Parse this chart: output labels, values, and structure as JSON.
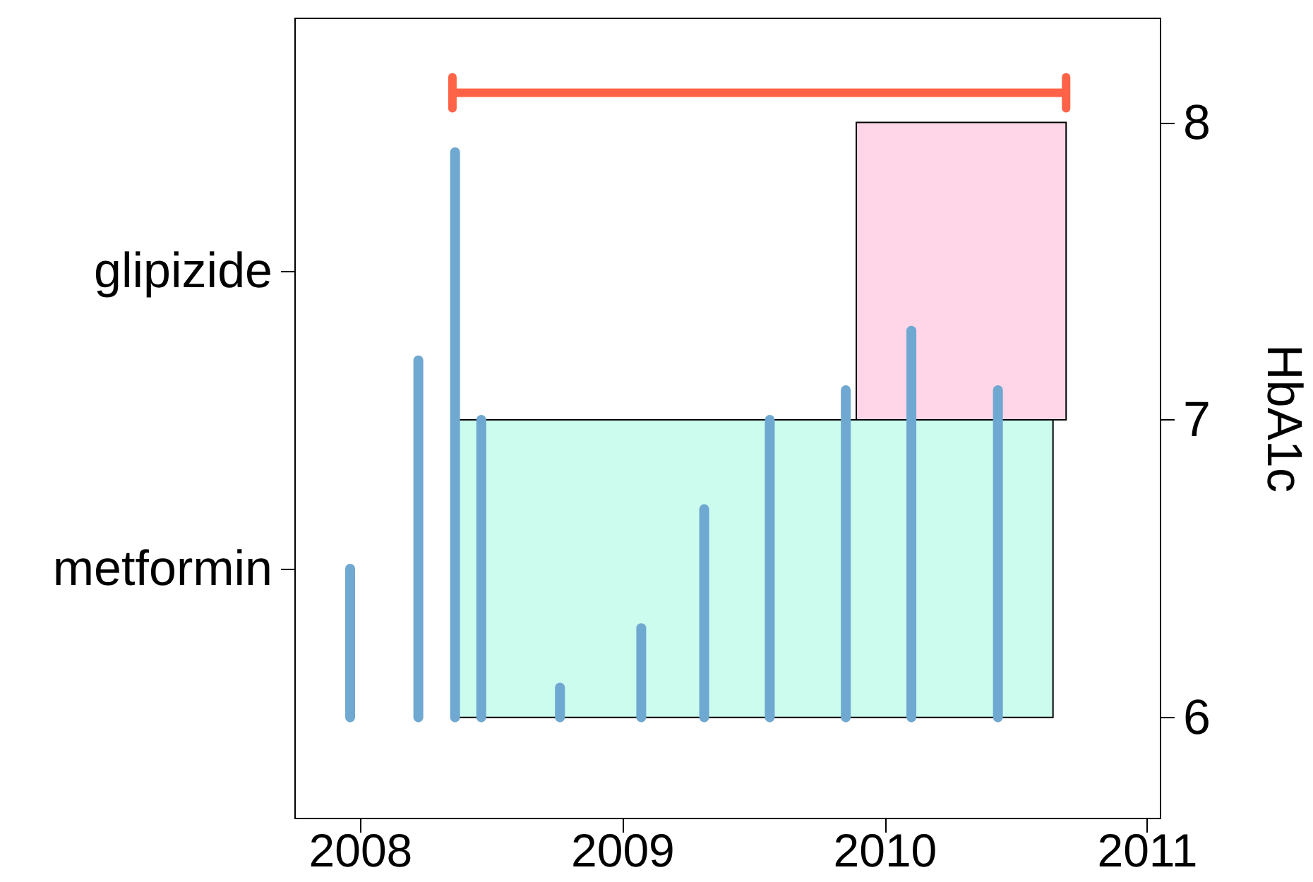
{
  "chart_data": [
    {
      "type": "bar",
      "orientation": "horizontal",
      "categories": [
        "glipizide",
        "metformin"
      ],
      "values": [
        0.8,
        2.27
      ],
      "base": [
        2009.89,
        2008.37
      ],
      "colors": [
        "#ffd6e8",
        "#ccfcee"
      ],
      "xlim": [
        2007.75,
        2011.05
      ],
      "xticks": [
        2008,
        2009,
        2010,
        2011
      ],
      "grid": false
    },
    {
      "type": "bar",
      "y2label": "HbA1c",
      "grid": false,
      "tick_labels": "y",
      "xlim": [
        2007.75,
        2011.05
      ],
      "xticks": [
        2008,
        2009,
        2010,
        2011
      ],
      "y2lim": [
        5.66,
        8.35
      ],
      "y2ticks": [
        6,
        7,
        8
      ],
      "series": [
        {
          "type": "bar",
          "axis": "y2",
          "color": "#6fa8d0",
          "x": [
            2007.96,
            2008.22,
            2008.36,
            2008.46,
            2008.76,
            2009.07,
            2009.31,
            2009.56,
            2009.85,
            2010.1,
            2010.43
          ],
          "base": [
            6,
            6,
            6,
            6,
            6,
            6,
            6,
            6,
            6,
            6,
            6
          ],
          "values": [
            0.5,
            1.2,
            1.9,
            1.0,
            0.1,
            0.3,
            0.7,
            1.0,
            1.1,
            1.3,
            1.1
          ]
        },
        {
          "type": "line",
          "axis": "y2",
          "color": "#ff6347",
          "x": [
            2008.35,
            2010.69
          ],
          "values": [
            8.1,
            8.1
          ]
        }
      ]
    }
  ]
}
